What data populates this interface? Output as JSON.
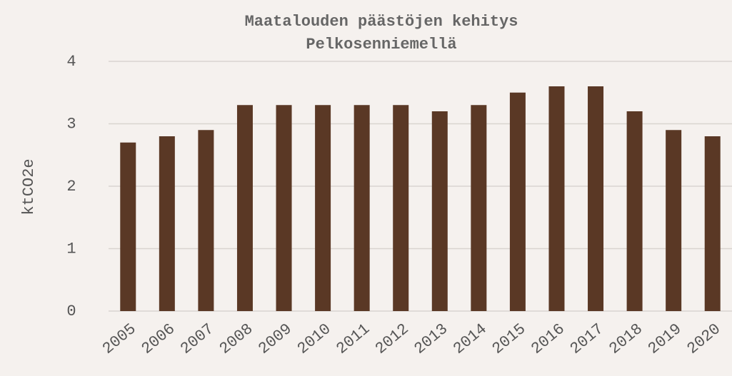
{
  "chart_data": {
    "type": "bar",
    "title": [
      "Maatalouden päästöjen kehitys",
      "Pelkosenniemellä"
    ],
    "y_label": "ktCO2e",
    "categories": [
      "2005",
      "2006",
      "2007",
      "2008",
      "2009",
      "2010",
      "2011",
      "2012",
      "2013",
      "2014",
      "2015",
      "2016",
      "2017",
      "2018",
      "2019",
      "2020"
    ],
    "values": [
      2.7,
      2.8,
      2.9,
      3.3,
      3.3,
      3.3,
      3.3,
      3.3,
      3.2,
      3.3,
      3.5,
      3.6,
      3.6,
      3.2,
      2.9,
      2.8
    ],
    "color": "#5a3825",
    "ylim": [
      0,
      4
    ],
    "yticks": [
      0,
      1,
      2,
      3,
      4
    ],
    "grid": true
  }
}
